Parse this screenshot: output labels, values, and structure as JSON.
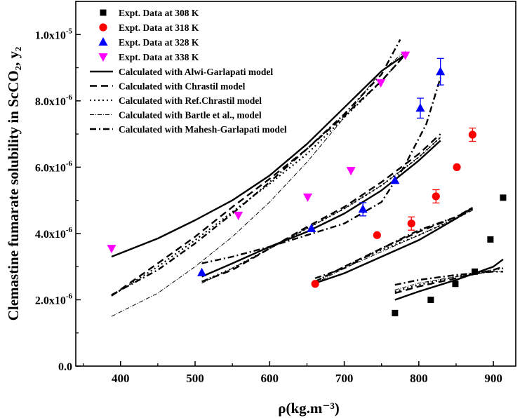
{
  "chart_data": {
    "type": "scatter",
    "title": "",
    "xlabel": "ρ(kg.m⁻³)",
    "ylabel": "Clemastine fumarate solubility in ScCO₂, y₂",
    "xlim": [
      340,
      930
    ],
    "ylim": [
      0,
      1.1e-05
    ],
    "x_ticks": [
      400,
      500,
      600,
      700,
      800,
      900
    ],
    "x_tick_labels": [
      "400",
      "500",
      "600",
      "700",
      "800",
      "900"
    ],
    "y_ticks": [
      0,
      2e-06,
      4e-06,
      6e-06,
      8e-06,
      1e-05
    ],
    "y_tick_labels": [
      {
        "mant": "0.0",
        "exp": ""
      },
      {
        "mant": "2.0x10",
        "exp": "-6"
      },
      {
        "mant": "4.0x10",
        "exp": "-6"
      },
      {
        "mant": "6.0x10",
        "exp": "-6"
      },
      {
        "mant": "8.0x10",
        "exp": "-6"
      },
      {
        "mant": "1.0x10",
        "exp": "-5"
      }
    ],
    "legend_position": "top-left",
    "series": [
      {
        "name": "Expt. Data at 308 K",
        "marker": "square",
        "color": "#000000",
        "points": [
          [
            768,
            1.6e-06
          ],
          [
            816,
            2e-06
          ],
          [
            849,
            2.48e-06
          ],
          [
            875,
            2.85e-06
          ],
          [
            896,
            3.82e-06
          ],
          [
            913,
            5.08e-06
          ]
        ],
        "errors": [
          0,
          0,
          0,
          0,
          0,
          0
        ]
      },
      {
        "name": "Expt. Data at 318 K",
        "marker": "circle",
        "color": "#ff0000",
        "points": [
          [
            661,
            2.48e-06
          ],
          [
            744,
            3.95e-06
          ],
          [
            790,
            4.3e-06
          ],
          [
            823,
            5.12e-06
          ],
          [
            851,
            6e-06
          ],
          [
            872,
            6.98e-06
          ]
        ],
        "errors": [
          0,
          0,
          2e-07,
          2e-07,
          0,
          2e-07
        ]
      },
      {
        "name": "Expt. Data at 328 K",
        "marker": "triangle-up",
        "color": "#0000ff",
        "points": [
          [
            509,
            2.82e-06
          ],
          [
            656,
            4.15e-06
          ],
          [
            725,
            4.73e-06
          ],
          [
            768,
            5.6e-06
          ],
          [
            802,
            7.78e-06
          ],
          [
            829,
            8.88e-06
          ]
        ],
        "errors": [
          0,
          0,
          2e-07,
          0,
          3e-07,
          4e-07
        ]
      },
      {
        "name": "Expt. Data at 338 K",
        "marker": "triangle-down",
        "color": "#ff00ff",
        "points": [
          [
            388,
            3.55e-06
          ],
          [
            558,
            4.55e-06
          ],
          [
            651,
            5.1e-06
          ],
          [
            709,
            5.9e-06
          ],
          [
            749,
            8.55e-06
          ],
          [
            782,
            9.38e-06
          ]
        ],
        "errors": [
          0,
          0,
          0,
          0,
          0,
          0
        ]
      }
    ],
    "models": [
      {
        "name": "Calculated with Alwi-Garlapati model",
        "dash": "solid",
        "width": 2.4,
        "curves": [
          [
            [
              388,
              3.3e-06
            ],
            [
              450,
              3.85e-06
            ],
            [
              500,
              4.4e-06
            ],
            [
              550,
              5e-06
            ],
            [
              600,
              5.75e-06
            ],
            [
              650,
              6.7e-06
            ],
            [
              700,
              7.8e-06
            ],
            [
              750,
              8.9e-06
            ],
            [
              782,
              9.4e-06
            ]
          ],
          [
            [
              509,
              2.7e-06
            ],
            [
              550,
              3.1e-06
            ],
            [
              600,
              3.6e-06
            ],
            [
              650,
              4.05e-06
            ],
            [
              700,
              4.6e-06
            ],
            [
              750,
              5.3e-06
            ],
            [
              800,
              6.2e-06
            ],
            [
              829,
              6.8e-06
            ]
          ],
          [
            [
              661,
              2.5e-06
            ],
            [
              700,
              2.8e-06
            ],
            [
              750,
              3.3e-06
            ],
            [
              800,
              3.8e-06
            ],
            [
              850,
              4.45e-06
            ],
            [
              872,
              4.78e-06
            ]
          ],
          [
            [
              768,
              2e-06
            ],
            [
              800,
              2.25e-06
            ],
            [
              850,
              2.6e-06
            ],
            [
              900,
              3e-06
            ],
            [
              913,
              3.22e-06
            ]
          ]
        ]
      },
      {
        "name": "Calculated with Chrastil model",
        "dash": "10,6",
        "width": 2.4,
        "curves": [
          [
            [
              388,
              2.12e-06
            ],
            [
              450,
              3.1e-06
            ],
            [
              500,
              3.9e-06
            ],
            [
              550,
              4.8e-06
            ],
            [
              600,
              5.65e-06
            ],
            [
              650,
              6.55e-06
            ],
            [
              700,
              7.55e-06
            ],
            [
              750,
              8.6e-06
            ],
            [
              782,
              9.4e-06
            ]
          ],
          [
            [
              509,
              2.55e-06
            ],
            [
              550,
              2.9e-06
            ],
            [
              600,
              3.55e-06
            ],
            [
              650,
              4.2e-06
            ],
            [
              700,
              4.8e-06
            ],
            [
              750,
              5.55e-06
            ],
            [
              800,
              6.4e-06
            ],
            [
              829,
              7e-06
            ]
          ],
          [
            [
              661,
              2.55e-06
            ],
            [
              700,
              3e-06
            ],
            [
              750,
              3.55e-06
            ],
            [
              800,
              4.05e-06
            ],
            [
              850,
              4.5e-06
            ],
            [
              872,
              4.75e-06
            ]
          ],
          [
            [
              768,
              2.2e-06
            ],
            [
              800,
              2.4e-06
            ],
            [
              850,
              2.65e-06
            ],
            [
              900,
              2.9e-06
            ],
            [
              913,
              3e-06
            ]
          ]
        ]
      },
      {
        "name": "Calculated with Ref.Chrastil model",
        "dash": "2,4",
        "width": 2.2,
        "curves": [
          [
            [
              388,
              2.12e-06
            ],
            [
              450,
              3e-06
            ],
            [
              500,
              3.8e-06
            ],
            [
              550,
              4.65e-06
            ],
            [
              600,
              5.5e-06
            ],
            [
              650,
              6.4e-06
            ],
            [
              700,
              7.5e-06
            ],
            [
              750,
              8.6e-06
            ],
            [
              782,
              9.4e-06
            ]
          ],
          [
            [
              509,
              2.55e-06
            ],
            [
              550,
              2.95e-06
            ],
            [
              600,
              3.55e-06
            ],
            [
              650,
              4.15e-06
            ],
            [
              700,
              4.75e-06
            ],
            [
              750,
              5.45e-06
            ],
            [
              800,
              6.3e-06
            ],
            [
              829,
              6.9e-06
            ]
          ],
          [
            [
              661,
              2.55e-06
            ],
            [
              700,
              3e-06
            ],
            [
              750,
              3.5e-06
            ],
            [
              800,
              3.95e-06
            ],
            [
              850,
              4.45e-06
            ],
            [
              872,
              4.72e-06
            ]
          ],
          [
            [
              768,
              2.25e-06
            ],
            [
              800,
              2.45e-06
            ],
            [
              850,
              2.7e-06
            ],
            [
              900,
              2.9e-06
            ],
            [
              913,
              2.95e-06
            ]
          ]
        ]
      },
      {
        "name": "Calculated with Bartle et al., model",
        "dash": "6,2,1,2",
        "width": 1.0,
        "curves": [
          [
            [
              388,
              1.5e-06
            ],
            [
              450,
              2.2e-06
            ],
            [
              500,
              3e-06
            ],
            [
              550,
              3.9e-06
            ],
            [
              600,
              4.95e-06
            ],
            [
              650,
              6.15e-06
            ],
            [
              700,
              7.5e-06
            ],
            [
              750,
              8.9e-06
            ],
            [
              782,
              9.5e-06
            ]
          ],
          [
            [
              509,
              2.5e-06
            ],
            [
              550,
              2.95e-06
            ],
            [
              600,
              3.55e-06
            ],
            [
              650,
              4.15e-06
            ],
            [
              700,
              4.75e-06
            ],
            [
              750,
              5.45e-06
            ],
            [
              800,
              6.3e-06
            ],
            [
              829,
              6.9e-06
            ]
          ],
          [
            [
              661,
              2.5e-06
            ],
            [
              700,
              2.95e-06
            ],
            [
              750,
              3.45e-06
            ],
            [
              800,
              3.95e-06
            ],
            [
              850,
              4.45e-06
            ],
            [
              872,
              4.7e-06
            ]
          ],
          [
            [
              768,
              2.3e-06
            ],
            [
              800,
              2.5e-06
            ],
            [
              850,
              2.7e-06
            ],
            [
              900,
              2.85e-06
            ],
            [
              913,
              2.85e-06
            ]
          ]
        ]
      },
      {
        "name": "Calculated with Mahesh-Garlapati model",
        "dash": "9,4,2,4",
        "width": 2.4,
        "curves": [
          [
            [
              388,
              2.15e-06
            ],
            [
              450,
              2.9e-06
            ],
            [
              500,
              3.7e-06
            ],
            [
              550,
              4.6e-06
            ],
            [
              600,
              5.55e-06
            ],
            [
              650,
              6.55e-06
            ],
            [
              700,
              7.6e-06
            ],
            [
              750,
              8.8e-06
            ],
            [
              775,
              9.85e-06
            ]
          ],
          [
            [
              509,
              3.1e-06
            ],
            [
              550,
              3.3e-06
            ],
            [
              600,
              3.6e-06
            ],
            [
              650,
              3.95e-06
            ],
            [
              700,
              4.3e-06
            ],
            [
              750,
              4.95e-06
            ],
            [
              780,
              6e-06
            ],
            [
              810,
              7.3e-06
            ],
            [
              829,
              8.7e-06
            ]
          ],
          [
            [
              661,
              2.65e-06
            ],
            [
              700,
              2.95e-06
            ],
            [
              750,
              3.55e-06
            ],
            [
              800,
              4.1e-06
            ],
            [
              850,
              4.5e-06
            ],
            [
              872,
              4.78e-06
            ]
          ],
          [
            [
              768,
              2.45e-06
            ],
            [
              800,
              2.6e-06
            ],
            [
              850,
              2.75e-06
            ],
            [
              900,
              2.85e-06
            ],
            [
              913,
              2.85e-06
            ]
          ]
        ]
      }
    ]
  }
}
